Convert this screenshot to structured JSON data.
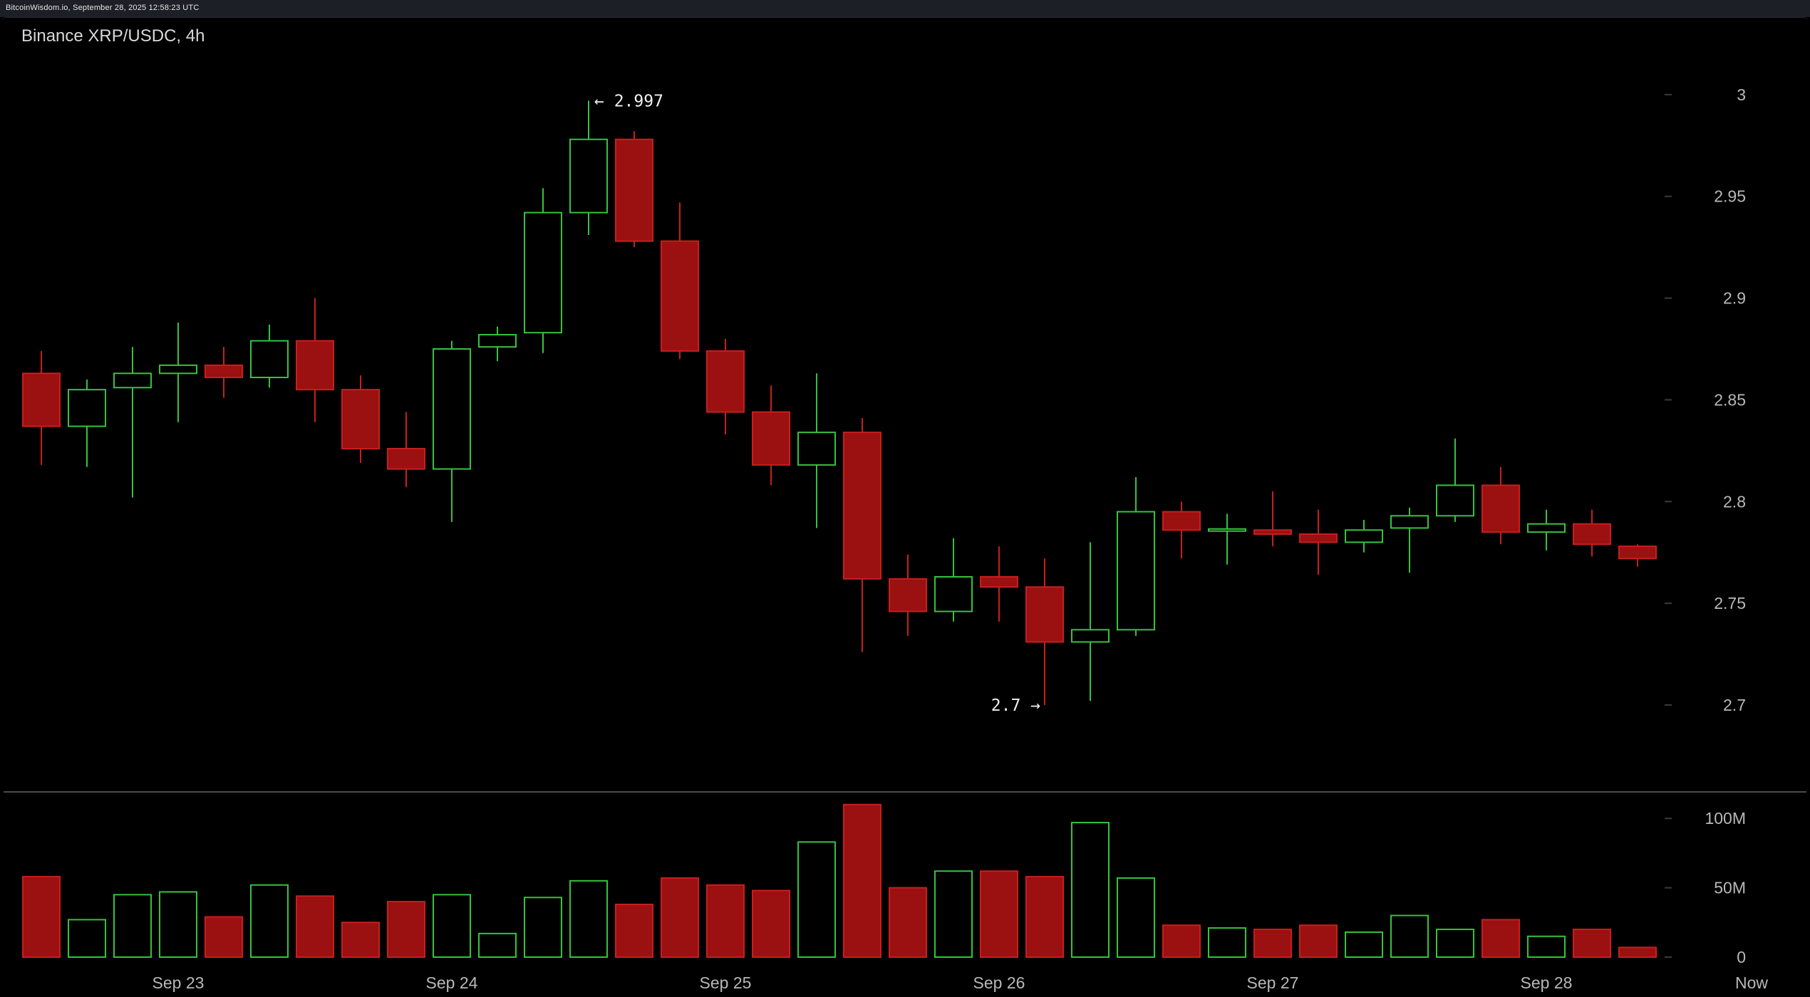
{
  "header": {
    "source_line": "BitcoinWisdom.io, September 28, 2025 12:58:23 UTC"
  },
  "colors": {
    "up": "#36c23c",
    "down": "#c81e1e",
    "down_fill": "#9b1010",
    "grid_tick": "#3a3a3a",
    "divider": "#4a4a4a"
  },
  "chart_data": {
    "type": "candlestick",
    "title": "Binance XRP/USDC, 4h",
    "price_axis": {
      "ylim": [
        2.665,
        3.015
      ],
      "ticks": [
        3,
        2.95,
        2.9,
        2.85,
        2.8,
        2.75,
        2.7
      ],
      "tick_labels": [
        "3",
        "2.95",
        "2.9",
        "2.85",
        "2.8",
        "2.75",
        "2.7"
      ]
    },
    "volume_axis": {
      "ylim": [
        0,
        115
      ],
      "unit": "M",
      "ticks": [
        100,
        50,
        0
      ],
      "tick_labels": [
        "100M",
        "50M",
        "0"
      ]
    },
    "x_axis": {
      "labels": [
        {
          "text": "Sep 23",
          "index": 3
        },
        {
          "text": "Sep 24",
          "index": 9
        },
        {
          "text": "Sep 25",
          "index": 15
        },
        {
          "text": "Sep 26",
          "index": 21
        },
        {
          "text": "Sep 27",
          "index": 27
        },
        {
          "text": "Sep 28",
          "index": 33
        },
        {
          "text": "Now",
          "index": 37.5
        }
      ]
    },
    "annotations": [
      {
        "text": "← 2.997",
        "index": 12,
        "value": 2.997,
        "side": "right"
      },
      {
        "text": "2.7 →",
        "index": 22,
        "value": 2.7,
        "side": "left"
      }
    ],
    "candles": [
      {
        "o": 2.863,
        "h": 2.874,
        "l": 2.818,
        "c": 2.837,
        "v": 58
      },
      {
        "o": 2.837,
        "h": 2.86,
        "l": 2.817,
        "c": 2.855,
        "v": 27
      },
      {
        "o": 2.856,
        "h": 2.876,
        "l": 2.802,
        "c": 2.863,
        "v": 45
      },
      {
        "o": 2.863,
        "h": 2.888,
        "l": 2.839,
        "c": 2.867,
        "v": 47
      },
      {
        "o": 2.867,
        "h": 2.876,
        "l": 2.851,
        "c": 2.861,
        "v": 29
      },
      {
        "o": 2.861,
        "h": 2.887,
        "l": 2.856,
        "c": 2.879,
        "v": 52
      },
      {
        "o": 2.879,
        "h": 2.9,
        "l": 2.839,
        "c": 2.855,
        "v": 44
      },
      {
        "o": 2.855,
        "h": 2.862,
        "l": 2.819,
        "c": 2.826,
        "v": 25
      },
      {
        "o": 2.826,
        "h": 2.844,
        "l": 2.807,
        "c": 2.816,
        "v": 40
      },
      {
        "o": 2.816,
        "h": 2.879,
        "l": 2.79,
        "c": 2.875,
        "v": 45
      },
      {
        "o": 2.876,
        "h": 2.886,
        "l": 2.869,
        "c": 2.882,
        "v": 17
      },
      {
        "o": 2.883,
        "h": 2.954,
        "l": 2.873,
        "c": 2.942,
        "v": 43
      },
      {
        "o": 2.942,
        "h": 2.997,
        "l": 2.931,
        "c": 2.978,
        "v": 55
      },
      {
        "o": 2.978,
        "h": 2.982,
        "l": 2.925,
        "c": 2.928,
        "v": 38
      },
      {
        "o": 2.928,
        "h": 2.947,
        "l": 2.87,
        "c": 2.874,
        "v": 57
      },
      {
        "o": 2.874,
        "h": 2.88,
        "l": 2.833,
        "c": 2.844,
        "v": 52
      },
      {
        "o": 2.844,
        "h": 2.857,
        "l": 2.808,
        "c": 2.818,
        "v": 48
      },
      {
        "o": 2.818,
        "h": 2.863,
        "l": 2.787,
        "c": 2.834,
        "v": 83
      },
      {
        "o": 2.834,
        "h": 2.841,
        "l": 2.726,
        "c": 2.762,
        "v": 110
      },
      {
        "o": 2.762,
        "h": 2.774,
        "l": 2.734,
        "c": 2.746,
        "v": 50
      },
      {
        "o": 2.746,
        "h": 2.782,
        "l": 2.741,
        "c": 2.763,
        "v": 62
      },
      {
        "o": 2.763,
        "h": 2.778,
        "l": 2.741,
        "c": 2.758,
        "v": 62
      },
      {
        "o": 2.758,
        "h": 2.772,
        "l": 2.7,
        "c": 2.731,
        "v": 58
      },
      {
        "o": 2.731,
        "h": 2.78,
        "l": 2.702,
        "c": 2.737,
        "v": 97
      },
      {
        "o": 2.737,
        "h": 2.812,
        "l": 2.734,
        "c": 2.795,
        "v": 57
      },
      {
        "o": 2.795,
        "h": 2.8,
        "l": 2.772,
        "c": 2.786,
        "v": 23
      },
      {
        "o": 2.786,
        "h": 2.794,
        "l": 2.769,
        "c": 2.786,
        "v": 21
      },
      {
        "o": 2.786,
        "h": 2.805,
        "l": 2.778,
        "c": 2.784,
        "v": 20
      },
      {
        "o": 2.784,
        "h": 2.796,
        "l": 2.764,
        "c": 2.78,
        "v": 23
      },
      {
        "o": 2.78,
        "h": 2.791,
        "l": 2.775,
        "c": 2.786,
        "v": 18
      },
      {
        "o": 2.787,
        "h": 2.797,
        "l": 2.765,
        "c": 2.793,
        "v": 30
      },
      {
        "o": 2.793,
        "h": 2.831,
        "l": 2.79,
        "c": 2.808,
        "v": 20
      },
      {
        "o": 2.808,
        "h": 2.817,
        "l": 2.779,
        "c": 2.785,
        "v": 27
      },
      {
        "o": 2.785,
        "h": 2.796,
        "l": 2.776,
        "c": 2.789,
        "v": 15
      },
      {
        "o": 2.789,
        "h": 2.796,
        "l": 2.773,
        "c": 2.779,
        "v": 20
      },
      {
        "o": 2.778,
        "h": 2.779,
        "l": 2.768,
        "c": 2.772,
        "v": 7
      }
    ]
  }
}
